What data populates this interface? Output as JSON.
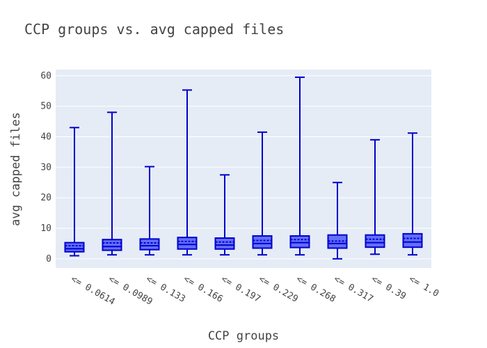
{
  "chart_data": {
    "type": "box",
    "title": "CCP groups vs. avg capped files",
    "xlabel": "CCP groups",
    "ylabel": "avg capped files",
    "ylim": [
      -3,
      62
    ],
    "yticks": [
      0,
      10,
      20,
      30,
      40,
      50,
      60
    ],
    "grid": true,
    "colors": {
      "box_fill": "#636efa",
      "box_line": "#0000cc",
      "plot_bg": "#e5ecf6"
    },
    "categories": [
      "<= 0.0614",
      "<= 0.0989",
      "<= 0.133",
      "<= 0.166",
      "<= 0.197",
      "<= 0.229",
      "<= 0.268",
      "<= 0.317",
      "<= 0.39",
      "<= 1.0"
    ],
    "boxes": [
      {
        "min": 1.0,
        "q1": 2.3,
        "median": 3.3,
        "mean": 4.3,
        "q3": 5.3,
        "max": 43.0
      },
      {
        "min": 1.3,
        "q1": 2.8,
        "median": 4.0,
        "mean": 5.2,
        "q3": 6.3,
        "max": 48.0
      },
      {
        "min": 1.3,
        "q1": 3.0,
        "median": 4.3,
        "mean": 5.2,
        "q3": 6.5,
        "max": 30.2
      },
      {
        "min": 1.3,
        "q1": 3.2,
        "median": 4.7,
        "mean": 5.7,
        "q3": 7.0,
        "max": 55.3
      },
      {
        "min": 1.3,
        "q1": 3.2,
        "median": 4.5,
        "mean": 5.5,
        "q3": 6.8,
        "max": 27.5
      },
      {
        "min": 1.3,
        "q1": 3.5,
        "median": 5.0,
        "mean": 6.0,
        "q3": 7.5,
        "max": 41.5
      },
      {
        "min": 1.3,
        "q1": 3.7,
        "median": 5.3,
        "mean": 6.3,
        "q3": 7.5,
        "max": 59.5
      },
      {
        "min": 0.0,
        "q1": 3.5,
        "median": 5.0,
        "mean": 5.8,
        "q3": 7.8,
        "max": 25.0
      },
      {
        "min": 1.5,
        "q1": 3.8,
        "median": 5.3,
        "mean": 6.4,
        "q3": 7.8,
        "max": 39.0
      },
      {
        "min": 1.3,
        "q1": 3.8,
        "median": 5.5,
        "mean": 6.7,
        "q3": 8.2,
        "max": 41.2
      }
    ]
  }
}
